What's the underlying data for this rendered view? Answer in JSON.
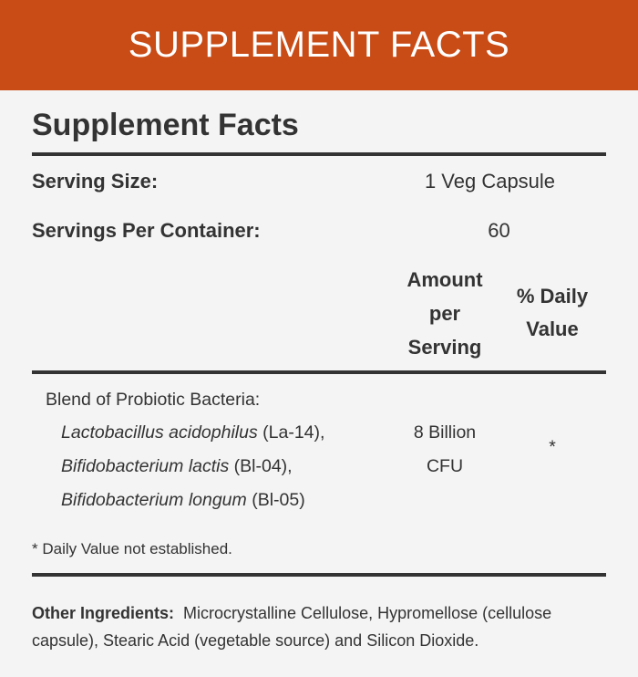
{
  "banner": {
    "title": "SUPPLEMENT FACTS"
  },
  "panel": {
    "title": "Supplement Facts",
    "serving_size_label": "Serving Size:",
    "serving_size_value": "1 Veg Capsule",
    "servings_per_container_label": "Servings Per Container:",
    "servings_per_container_value": "60",
    "col_amount": [
      "Amount",
      "per",
      "Serving"
    ],
    "col_dv": [
      "% Daily",
      "Value"
    ],
    "blend": {
      "name": "Blend of Probiotic Bacteria:",
      "strains": [
        {
          "species": "Lactobacillus acidophilus",
          "strain": " (La-14),",
          "suffix": ""
        },
        {
          "species": "Bifidobacterium lactis",
          "strain": " (Bl-04),",
          "suffix": ""
        },
        {
          "species": "Bifidobacterium longum",
          "strain": " (Bl-05)",
          "suffix": ""
        }
      ],
      "amount": [
        "8 Billion",
        "CFU"
      ],
      "dv": "*"
    },
    "footnote": "* Daily Value not established.",
    "other_ingredients_label": "Other Ingredients:",
    "other_ingredients_text": "Microcrystalline Cellulose, Hypromellose (cellulose capsule), Stearic Acid (vegetable source) and Silicon Dioxide."
  },
  "colors": {
    "banner": "#c94b16",
    "background": "#f4f4f4",
    "text": "#333333"
  }
}
